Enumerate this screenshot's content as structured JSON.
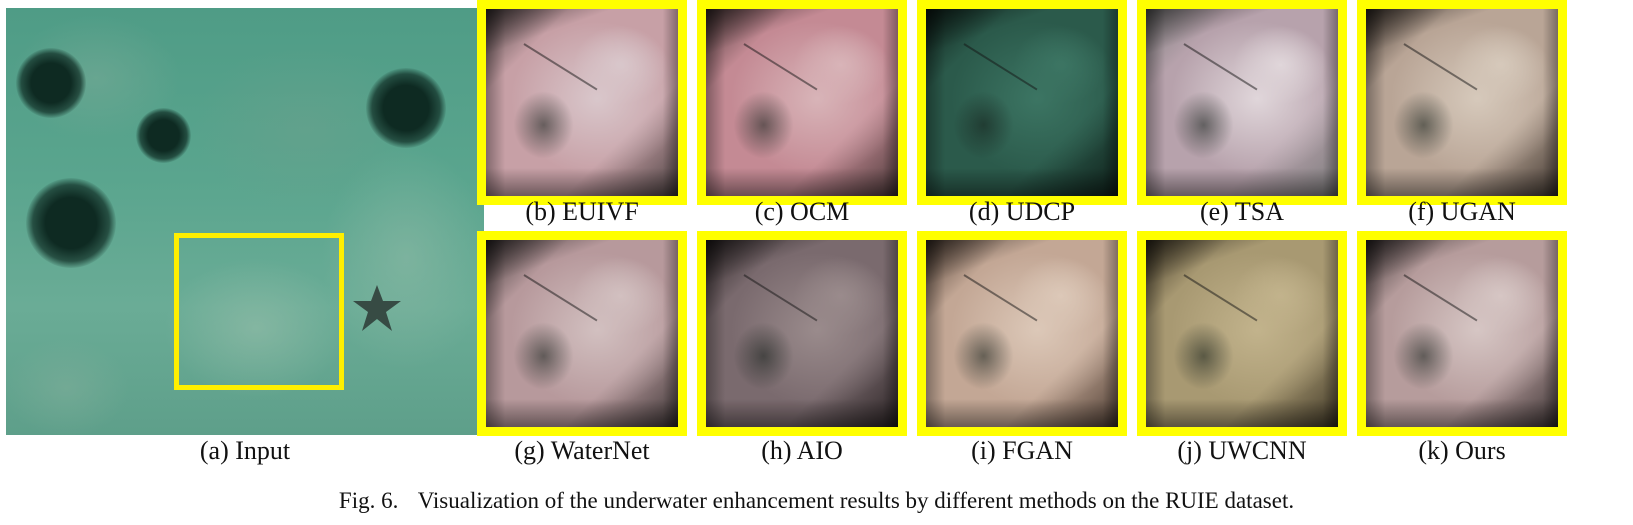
{
  "figure": {
    "caption_number": "Fig. 6.",
    "caption_text": "Visualization of the underwater enhancement results by different methods on the RUIE dataset."
  },
  "input": {
    "label": "(a)  Input"
  },
  "panels": [
    {
      "label": "(b)  EUIVF",
      "base": "#c7a0a6",
      "mid": "#d9c7cb",
      "dark": "#4a4040"
    },
    {
      "label": "(c)  OCM",
      "base": "#c48a94",
      "mid": "#d8b4b8",
      "dark": "#4a3838"
    },
    {
      "label": "(d)  UDCP",
      "base": "#2b5a4b",
      "mid": "#3c7563",
      "dark": "#0f201a"
    },
    {
      "label": "(e)  TSA",
      "base": "#b7a2ac",
      "mid": "#e0d6da",
      "dark": "#7c7c7c"
    },
    {
      "label": "(f)  UGAN",
      "base": "#b9a596",
      "mid": "#d6c9bb",
      "dark": "#3f362f"
    },
    {
      "label": "(g)  WaterNet",
      "base": "#b7999c",
      "mid": "#d2c0c0",
      "dark": "#3b3434"
    },
    {
      "label": "(h)  AIO",
      "base": "#7a6a6e",
      "mid": "#9a8b8c",
      "dark": "#2a2324"
    },
    {
      "label": "(i)  FGAN",
      "base": "#c3a795",
      "mid": "#dcc8b8",
      "dark": "#4c3c32"
    },
    {
      "label": "(j)  UWCNN",
      "base": "#a89972",
      "mid": "#c2b38c",
      "dark": "#3f3726"
    },
    {
      "label": "(k)  Ours",
      "base": "#b69c9c",
      "mid": "#d6c6c4",
      "dark": "#3a3232"
    }
  ]
}
